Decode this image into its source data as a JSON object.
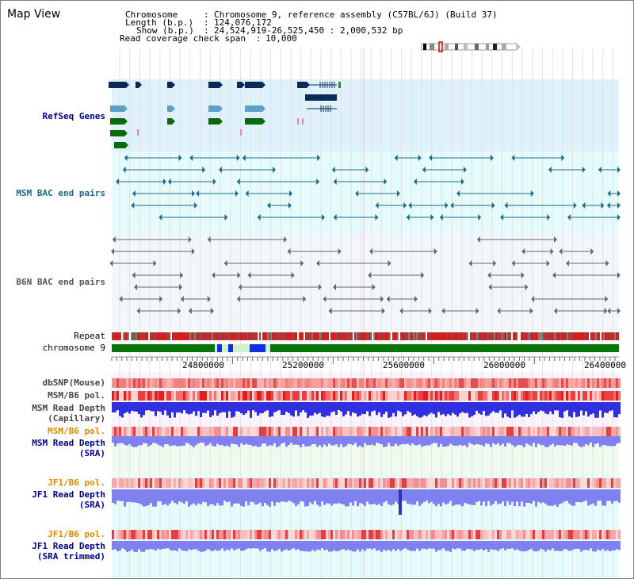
{
  "header": {
    "title": "Map View",
    "chromosome_label": "Chromosome",
    "chromosome_value": "Chromosome 9, reference assembly (C57BL/6J) (Build 37)",
    "length_label": "Length (b.p.)",
    "length_value": "124,076,172",
    "show_label": "Show (b.p.)",
    "show_value": "24,524,919-26,525,450 : 2,000,532 bp",
    "coverage_label": "Read coverage check span",
    "coverage_value": "10,000",
    "separator": ":"
  },
  "tracks": {
    "refseq": "RefSeq Genes",
    "msm_bac": "MSM BAC end pairs",
    "b6n_bac": "B6N BAC end pairs",
    "repeat": "Repeat",
    "chromosome": "chromosome 9",
    "dbsnp": "dbSNP(Mouse)",
    "msm_b6_pol": "MSM/B6 pol.",
    "msm_read_depth_cap_1": "MSM Read Depth",
    "msm_read_depth_cap_2": "(Capillary)",
    "msm_b6_pol_2": "MSM/B6 pol.",
    "msm_read_depth_sra_1": "MSM Read Depth",
    "msm_read_depth_sra_2": "(SRA)",
    "jf1_b6_pol_1": "JF1/B6 pol.",
    "jf1_read_depth_sra_1": "JF1 Read Depth",
    "jf1_read_depth_sra_2": "(SRA)",
    "jf1_b6_pol_2": "JF1/B6 pol.",
    "jf1_read_depth_trim_1": "JF1 Read Depth",
    "jf1_read_depth_trim_2": "(SRA trimmed)"
  },
  "axis": {
    "ticks": [
      "24800000",
      "25200000",
      "25600000",
      "26000000",
      "26400000"
    ]
  },
  "colors": {
    "refseq_bg": "#dff1fb",
    "msm_bg": "#e6fbfb",
    "b6n_bg": "#f3f6fb",
    "gene_dark": "#0a2a5a",
    "gene_light": "#5aa0c8",
    "gene_green": "#0a6a0a",
    "bac_msm": "#1a6a8a",
    "bac_b6n": "#666666",
    "chrom_green": "#0a740a",
    "chrom_blue": "#1030e0",
    "depth_blue": "#3030e0",
    "depth_light": "#8080f0",
    "pol_orange": "#e08a00",
    "label_blue": "#00008b"
  }
}
